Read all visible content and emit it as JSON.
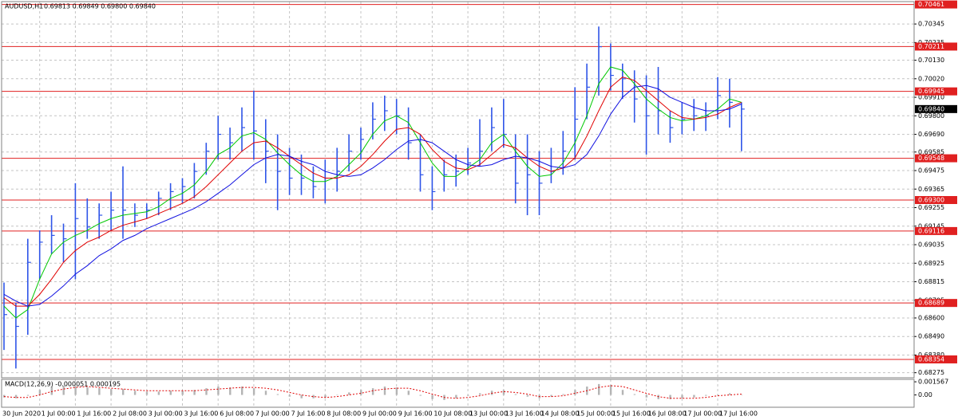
{
  "chart_data": {
    "type": "ohlc",
    "symbol": "AUDUSD,H1",
    "quote": "0.69813 0.69849 0.69800 0.69840",
    "color": "#2f55e8",
    "categories": [
      "30 Jun 2020",
      null,
      null,
      "1 Jul 00:00",
      null,
      null,
      "1 Jul 16:00",
      null,
      null,
      "2 Jul 08:00",
      null,
      null,
      "3 Jul 00:00",
      null,
      null,
      "3 Jul 16:00",
      null,
      null,
      "6 Jul 08:00",
      null,
      null,
      "7 Jul 00:00",
      null,
      null,
      "7 Jul 16:00",
      null,
      null,
      "8 Jul 08:00",
      null,
      null,
      "9 Jul 00:00",
      null,
      null,
      "9 Jul 16:00",
      null,
      null,
      "10 Jul 08:00",
      null,
      null,
      "13 Jul 00:00",
      null,
      null,
      "13 Jul 16:00",
      null,
      null,
      "14 Jul 08:00",
      null,
      null,
      "15 Jul 00:00",
      null,
      null,
      "15 Jul 16:00",
      null,
      null,
      "16 Jul 08:00",
      null,
      null,
      "17 Jul 00:00",
      null,
      null,
      "17 Jul 16:00",
      null,
      null
    ],
    "high": [
      0.6881,
      0.6869,
      0.6907,
      0.6912,
      0.6921,
      0.6916,
      0.694,
      0.6931,
      0.6928,
      0.6935,
      0.695,
      0.6928,
      0.6928,
      0.6935,
      0.694,
      0.6943,
      0.6952,
      0.6964,
      0.698,
      0.6973,
      0.6985,
      0.6995,
      0.6978,
      0.6969,
      0.6961,
      0.6957,
      0.695,
      0.6954,
      0.6961,
      0.6969,
      0.6973,
      0.6988,
      0.6992,
      0.699,
      0.6985,
      0.6969,
      0.695,
      0.6954,
      0.6957,
      0.6961,
      0.6978,
      0.6985,
      0.699,
      0.6969,
      0.6969,
      0.6959,
      0.6961,
      0.6971,
      0.6997,
      0.7011,
      0.7033,
      0.7023,
      0.7011,
      0.7007,
      0.7004,
      0.7009,
      0.6983,
      0.6988,
      0.699,
      0.6988,
      0.7003,
      0.7002,
      0.6988
    ],
    "low": [
      0.6841,
      0.683,
      0.685,
      0.6883,
      0.6898,
      0.6893,
      0.6883,
      0.6907,
      0.6907,
      0.6912,
      0.6907,
      0.6914,
      0.6919,
      0.6921,
      0.6924,
      0.6928,
      0.6931,
      0.6945,
      0.6954,
      0.6954,
      0.6959,
      0.6954,
      0.694,
      0.6924,
      0.6933,
      0.6933,
      0.6931,
      0.6928,
      0.6935,
      0.6947,
      0.6954,
      0.6966,
      0.6971,
      0.6969,
      0.6954,
      0.6935,
      0.6924,
      0.6935,
      0.6938,
      0.6945,
      0.695,
      0.6959,
      0.6961,
      0.6928,
      0.6921,
      0.6921,
      0.694,
      0.6945,
      0.6954,
      0.6978,
      0.6992,
      0.6995,
      0.699,
      0.6976,
      0.6957,
      0.6969,
      0.6964,
      0.6969,
      0.6971,
      0.6971,
      0.6978,
      0.6973,
      0.6959
    ],
    "close": [
      0.6862,
      0.6855,
      0.6893,
      0.6905,
      0.6909,
      0.6907,
      0.6919,
      0.6914,
      0.6921,
      0.6924,
      0.6924,
      0.6921,
      0.6924,
      0.6931,
      0.6935,
      0.6938,
      0.6947,
      0.6959,
      0.6969,
      0.6964,
      0.6973,
      0.6971,
      0.6959,
      0.6947,
      0.6943,
      0.6943,
      0.6938,
      0.6943,
      0.6947,
      0.6959,
      0.6966,
      0.6978,
      0.6983,
      0.698,
      0.6964,
      0.6945,
      0.6935,
      0.6945,
      0.6947,
      0.6952,
      0.6959,
      0.6973,
      0.6969,
      0.694,
      0.6945,
      0.694,
      0.6947,
      0.6959,
      0.6978,
      0.6997,
      0.7021,
      0.7004,
      0.7002,
      0.699,
      0.698,
      0.6983,
      0.6973,
      0.6978,
      0.698,
      0.698,
      0.6992,
      0.6988,
      0.6984
    ],
    "moving_averages": [
      {
        "color": "#00c800",
        "values": [
          0.6867,
          0.686,
          0.6865,
          0.6883,
          0.6898,
          0.6905,
          0.6909,
          0.6912,
          0.6916,
          0.6919,
          0.6921,
          0.6922,
          0.6923,
          0.6926,
          0.6931,
          0.6934,
          0.6939,
          0.6947,
          0.6957,
          0.6961,
          0.6968,
          0.697,
          0.6966,
          0.6958,
          0.6951,
          0.6945,
          0.6941,
          0.6941,
          0.6944,
          0.6951,
          0.6958,
          0.6969,
          0.6977,
          0.698,
          0.6976,
          0.6964,
          0.6952,
          0.6944,
          0.6944,
          0.6949,
          0.6954,
          0.6964,
          0.6969,
          0.6959,
          0.695,
          0.6944,
          0.6945,
          0.6952,
          0.6964,
          0.698,
          0.6999,
          0.7009,
          0.7007,
          0.6999,
          0.699,
          0.6984,
          0.6979,
          0.6977,
          0.6978,
          0.698,
          0.6984,
          0.699,
          0.6988
        ]
      },
      {
        "color": "#e00000",
        "values": [
          0.6872,
          0.6867,
          0.6867,
          0.6874,
          0.6883,
          0.6893,
          0.69,
          0.6905,
          0.6908,
          0.6912,
          0.6915,
          0.6917,
          0.6919,
          0.6922,
          0.6925,
          0.6928,
          0.6932,
          0.6938,
          0.6945,
          0.6952,
          0.6959,
          0.6964,
          0.6965,
          0.6961,
          0.6956,
          0.6951,
          0.6946,
          0.6943,
          0.6943,
          0.6945,
          0.695,
          0.6957,
          0.6965,
          0.6972,
          0.6973,
          0.6969,
          0.696,
          0.6953,
          0.6949,
          0.6948,
          0.6951,
          0.6957,
          0.6963,
          0.6961,
          0.6955,
          0.695,
          0.6947,
          0.6949,
          0.6955,
          0.6968,
          0.6983,
          0.6997,
          0.7003,
          0.7001,
          0.6995,
          0.6989,
          0.6983,
          0.6979,
          0.6978,
          0.6979,
          0.6981,
          0.6985,
          0.6988
        ]
      },
      {
        "color": "#1010e0",
        "values": [
          0.6874,
          0.687,
          0.6867,
          0.6868,
          0.6873,
          0.6879,
          0.6886,
          0.6891,
          0.6897,
          0.6901,
          0.6906,
          0.6909,
          0.6913,
          0.6916,
          0.6919,
          0.6922,
          0.6925,
          0.6929,
          0.6934,
          0.6939,
          0.6945,
          0.6951,
          0.6955,
          0.6957,
          0.6956,
          0.6953,
          0.6951,
          0.6947,
          0.6945,
          0.6944,
          0.6945,
          0.6949,
          0.6954,
          0.696,
          0.6965,
          0.6966,
          0.6964,
          0.6959,
          0.6954,
          0.6951,
          0.695,
          0.6951,
          0.6954,
          0.6956,
          0.6955,
          0.6953,
          0.695,
          0.6949,
          0.6951,
          0.6957,
          0.6968,
          0.6981,
          0.6991,
          0.6997,
          0.6998,
          0.6996,
          0.6991,
          0.6988,
          0.6985,
          0.6983,
          0.6983,
          0.6984,
          0.6987
        ]
      }
    ],
    "ylim": [
      0.68245,
      0.70478
    ],
    "yticks": [
      0.70345,
      0.70235,
      {
        "value": 0.7013,
        "label": "0.70130"
      },
      {
        "value": 0.7002,
        "label": "0.70020"
      },
      {
        "value": 0.6991,
        "label": "0.69910"
      },
      {
        "value": 0.698,
        "label": "0.69800"
      },
      {
        "value": 0.6969,
        "label": "0.69690"
      },
      0.69585,
      0.69475,
      0.69365,
      0.69255,
      0.69145,
      0.69035,
      0.68925,
      0.68815,
      0.68705,
      {
        "value": 0.686,
        "label": "0.68600"
      },
      {
        "value": 0.6849,
        "label": "0.68490"
      },
      {
        "value": 0.6838,
        "label": "0.68380"
      },
      0.68275
    ],
    "grid": true,
    "levels": [
      0.70461,
      0.70211,
      0.69945,
      0.69548,
      {
        "value": 0.693,
        "label": "0.69300"
      },
      0.69116,
      0.68689,
      0.68354
    ],
    "level_color": "#e02020",
    "current_price": {
      "value": 0.6984,
      "label": "0.69840"
    },
    "macd": {
      "label": "MACD(12,26,9) -0.000051 0.000195",
      "color": "#b4b4b4",
      "signal_color": "#e00000",
      "values": [
        -0.0003,
        -0.0004,
        -0.0001,
        0.0006,
        0.001,
        0.0011,
        0.001,
        0.0009,
        0.0008,
        0.0007,
        0.0007,
        0.0005,
        0.0004,
        0.0004,
        0.0005,
        0.0005,
        0.0006,
        0.0008,
        0.001,
        0.0009,
        0.001,
        0.0008,
        0.0005,
        0.0001,
        -0.0002,
        -0.0004,
        -0.0004,
        -0.0003,
        0,
        0.0003,
        0.0006,
        0.0008,
        0.001,
        0.0009,
        0.0005,
        -0.0001,
        -0.0005,
        -0.0006,
        -0.0004,
        -0.0001,
        0.0002,
        0.0005,
        0.0006,
        0.0001,
        -0.0002,
        -0.0004,
        -0.0002,
        0.0001,
        0.0006,
        0.001,
        0.0013,
        0.0012,
        0.0006,
        0.0001,
        -0.0003,
        -0.0005,
        -0.0005,
        -0.0004,
        -0.0003,
        -0.0001,
        0,
        0.0002,
        0
      ],
      "signal": [
        -0.0002,
        -0.0003,
        -0.0003,
        0,
        0.0004,
        0.0007,
        0.0009,
        0.001,
        0.0009,
        0.0008,
        0.0007,
        0.0006,
        0.0005,
        0.0005,
        0.0005,
        0.0005,
        0.0005,
        0.0006,
        0.0007,
        0.0008,
        0.0009,
        0.0009,
        0.0008,
        0.0006,
        0.0003,
        0,
        -0.0002,
        -0.0003,
        -0.0002,
        0,
        0.0002,
        0.0005,
        0.0007,
        0.0008,
        0.0008,
        0.0005,
        0.0001,
        -0.0003,
        -0.0004,
        -0.0003,
        -0.0001,
        0.0002,
        0.0004,
        0.0003,
        0.0001,
        -0.0002,
        -0.0002,
        -0.0001,
        0.0002,
        0.0005,
        0.0009,
        0.0011,
        0.001,
        0.0006,
        0.0002,
        -0.0002,
        -0.0004,
        -0.0004,
        -0.0004,
        -0.0003,
        -0.0001,
        0,
        0.0001
      ],
      "ylim": [
        -0.00147,
        0.00186
      ],
      "yticks": [
        0.001567,
        {
          "value": 0,
          "label": "0.00"
        }
      ]
    }
  }
}
